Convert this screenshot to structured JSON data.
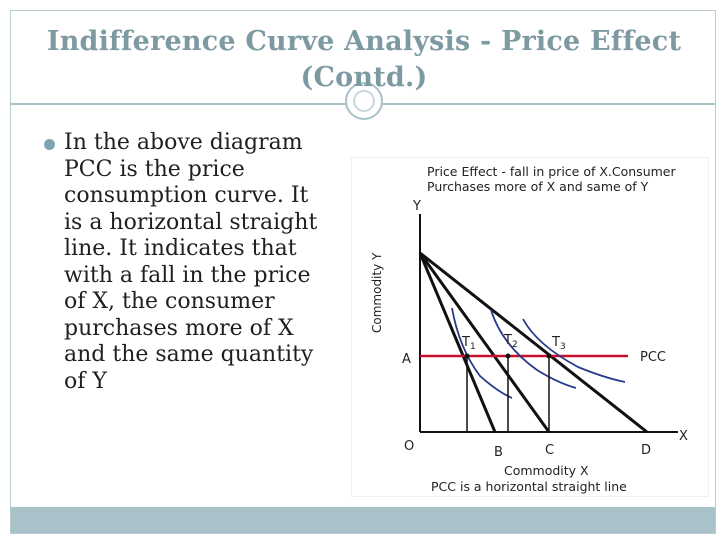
{
  "slide": {
    "title": "Indifference Curve Analysis - Price Effect (Contd.)",
    "bullet": "In the above diagram PCC is the price consumption curve. It is a horizontal straight line. It indicates that with a fall in the price of X, the consumer purchases more of X and the same quantity of Y"
  },
  "figure": {
    "caption_line1": "Price Effect - fall in price of X.Consumer",
    "caption_line2": "Purchases more of X and same of Y",
    "axis_y_letter": "Y",
    "axis_x_letter": "X",
    "origin_label": "O",
    "point_a_label": "A",
    "point_b_label": "B",
    "point_c_label": "C",
    "point_d_label": "D",
    "t1_label": "T",
    "t1_sub": "1",
    "t2_label": "T",
    "t2_sub": "2",
    "t3_label": "T",
    "t3_sub": "3",
    "pcc_label": "PCC",
    "y_axis_title": "Commodity Y",
    "x_axis_title": "Commodity X",
    "bottom_caption": "PCC is a horizontal straight line"
  },
  "colors": {
    "title": "#7d9aa3",
    "accent": "#a9c2c9",
    "bullet": "#7fa3b0",
    "pcc_line": "#c8102e",
    "indifference_curve": "#2a3a8a",
    "budget_line": "#111111"
  }
}
